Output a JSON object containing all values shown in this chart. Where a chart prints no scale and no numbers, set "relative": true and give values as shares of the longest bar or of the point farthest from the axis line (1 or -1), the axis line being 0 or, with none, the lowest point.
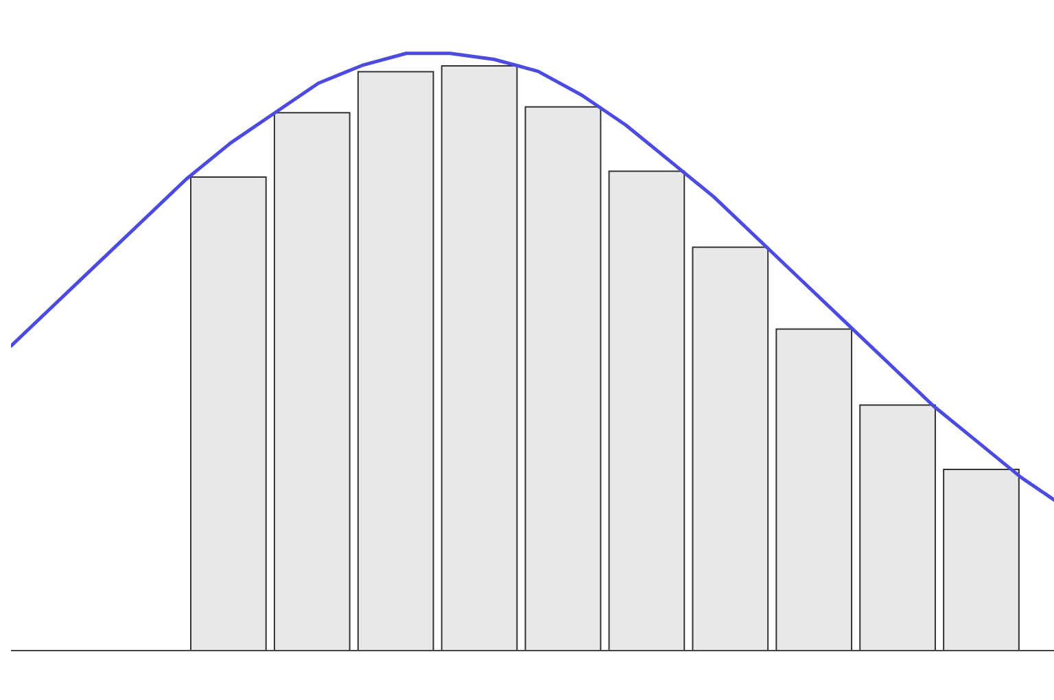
{
  "chart_data": [
    {
      "type": "bar",
      "relative": true,
      "categories": [
        null,
        null,
        null,
        null,
        null,
        null,
        null,
        null,
        null,
        null
      ],
      "tick_labels": false,
      "color": "#e8e8e8",
      "values": [
        0.81,
        0.92,
        0.99,
        1,
        0.93,
        0.82,
        0.69,
        0.55,
        0.42,
        0.31
      ]
    },
    {
      "type": "line",
      "relative": true,
      "categories": [
        null,
        null,
        null,
        null,
        null,
        null,
        null,
        null,
        null,
        null,
        null,
        null,
        null,
        null,
        null,
        null,
        null,
        null,
        null,
        null,
        null,
        null,
        null,
        null,
        null
      ],
      "tick_labels": false,
      "color": "#4b4bdf",
      "values": [
        0.51,
        0.58,
        0.65,
        0.72,
        0.79,
        0.85,
        0.9,
        0.95,
        0.98,
        1,
        1,
        0.99,
        0.97,
        0.93,
        0.88,
        0.82,
        0.76,
        0.69,
        0.62,
        0.55,
        0.48,
        0.41,
        0.35,
        0.29,
        0.24
      ]
    }
  ]
}
